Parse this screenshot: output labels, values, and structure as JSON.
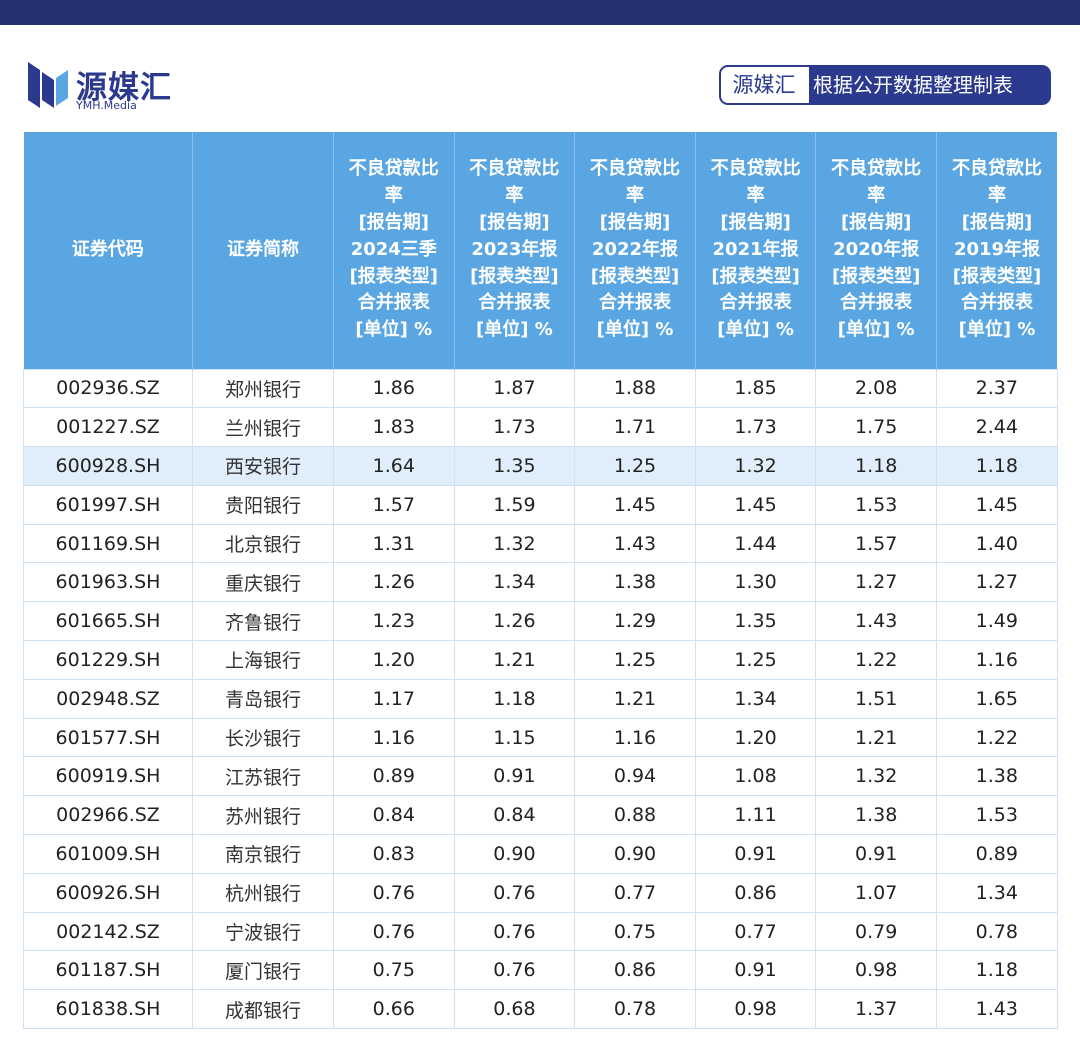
{
  "logo": {
    "name_cn": "源媒汇",
    "name_en": "YMH.Media"
  },
  "source_tag": {
    "brand": "源媒汇",
    "text": "根据公开数据整理制表"
  },
  "table": {
    "headers": {
      "code": "证券代码",
      "name": "证券简称",
      "periods": [
        [
          "不良贷款比",
          "率",
          "[报告期]",
          "2024三季",
          "[报表类型]",
          "合并报表",
          "[单位] %"
        ],
        [
          "不良贷款比",
          "率",
          "[报告期]",
          "2023年报",
          "[报表类型]",
          "合并报表",
          "[单位] %"
        ],
        [
          "不良贷款比",
          "率",
          "[报告期]",
          "2022年报",
          "[报表类型]",
          "合并报表",
          "[单位] %"
        ],
        [
          "不良贷款比",
          "率",
          "[报告期]",
          "2021年报",
          "[报表类型]",
          "合并报表",
          "[单位] %"
        ],
        [
          "不良贷款比",
          "率",
          "[报告期]",
          "2020年报",
          "[报表类型]",
          "合并报表",
          "[单位] %"
        ],
        [
          "不良贷款比",
          "率",
          "[报告期]",
          "2019年报",
          "[报表类型]",
          "合并报表",
          "[单位] %"
        ]
      ]
    },
    "rows": [
      {
        "code": "002936.SZ",
        "name": "郑州银行",
        "values": [
          "1.86",
          "1.87",
          "1.88",
          "1.85",
          "2.08",
          "2.37"
        ]
      },
      {
        "code": "001227.SZ",
        "name": "兰州银行",
        "values": [
          "1.83",
          "1.73",
          "1.71",
          "1.73",
          "1.75",
          "2.44"
        ]
      },
      {
        "code": "600928.SH",
        "name": "西安银行",
        "values": [
          "1.64",
          "1.35",
          "1.25",
          "1.32",
          "1.18",
          "1.18"
        ],
        "highlight": true
      },
      {
        "code": "601997.SH",
        "name": "贵阳银行",
        "values": [
          "1.57",
          "1.59",
          "1.45",
          "1.45",
          "1.53",
          "1.45"
        ]
      },
      {
        "code": "601169.SH",
        "name": "北京银行",
        "values": [
          "1.31",
          "1.32",
          "1.43",
          "1.44",
          "1.57",
          "1.40"
        ]
      },
      {
        "code": "601963.SH",
        "name": "重庆银行",
        "values": [
          "1.26",
          "1.34",
          "1.38",
          "1.30",
          "1.27",
          "1.27"
        ]
      },
      {
        "code": "601665.SH",
        "name": "齐鲁银行",
        "values": [
          "1.23",
          "1.26",
          "1.29",
          "1.35",
          "1.43",
          "1.49"
        ]
      },
      {
        "code": "601229.SH",
        "name": "上海银行",
        "values": [
          "1.20",
          "1.21",
          "1.25",
          "1.25",
          "1.22",
          "1.16"
        ]
      },
      {
        "code": "002948.SZ",
        "name": "青岛银行",
        "values": [
          "1.17",
          "1.18",
          "1.21",
          "1.34",
          "1.51",
          "1.65"
        ]
      },
      {
        "code": "601577.SH",
        "name": "长沙银行",
        "values": [
          "1.16",
          "1.15",
          "1.16",
          "1.20",
          "1.21",
          "1.22"
        ]
      },
      {
        "code": "600919.SH",
        "name": "江苏银行",
        "values": [
          "0.89",
          "0.91",
          "0.94",
          "1.08",
          "1.32",
          "1.38"
        ]
      },
      {
        "code": "002966.SZ",
        "name": "苏州银行",
        "values": [
          "0.84",
          "0.84",
          "0.88",
          "1.11",
          "1.38",
          "1.53"
        ]
      },
      {
        "code": "601009.SH",
        "name": "南京银行",
        "values": [
          "0.83",
          "0.90",
          "0.90",
          "0.91",
          "0.91",
          "0.89"
        ]
      },
      {
        "code": "600926.SH",
        "name": "杭州银行",
        "values": [
          "0.76",
          "0.76",
          "0.77",
          "0.86",
          "1.07",
          "1.34"
        ]
      },
      {
        "code": "002142.SZ",
        "name": "宁波银行",
        "values": [
          "0.76",
          "0.76",
          "0.75",
          "0.77",
          "0.79",
          "0.78"
        ]
      },
      {
        "code": "601187.SH",
        "name": "厦门银行",
        "values": [
          "0.75",
          "0.76",
          "0.86",
          "0.91",
          "0.98",
          "1.18"
        ]
      },
      {
        "code": "601838.SH",
        "name": "成都银行",
        "values": [
          "0.66",
          "0.68",
          "0.78",
          "0.98",
          "1.37",
          "1.43"
        ]
      }
    ]
  },
  "colors": {
    "top_bar": "#27306f",
    "brand": "#2b3a8f",
    "header_bg": "#5aa6e3",
    "highlight_row": "#dfeefa"
  }
}
